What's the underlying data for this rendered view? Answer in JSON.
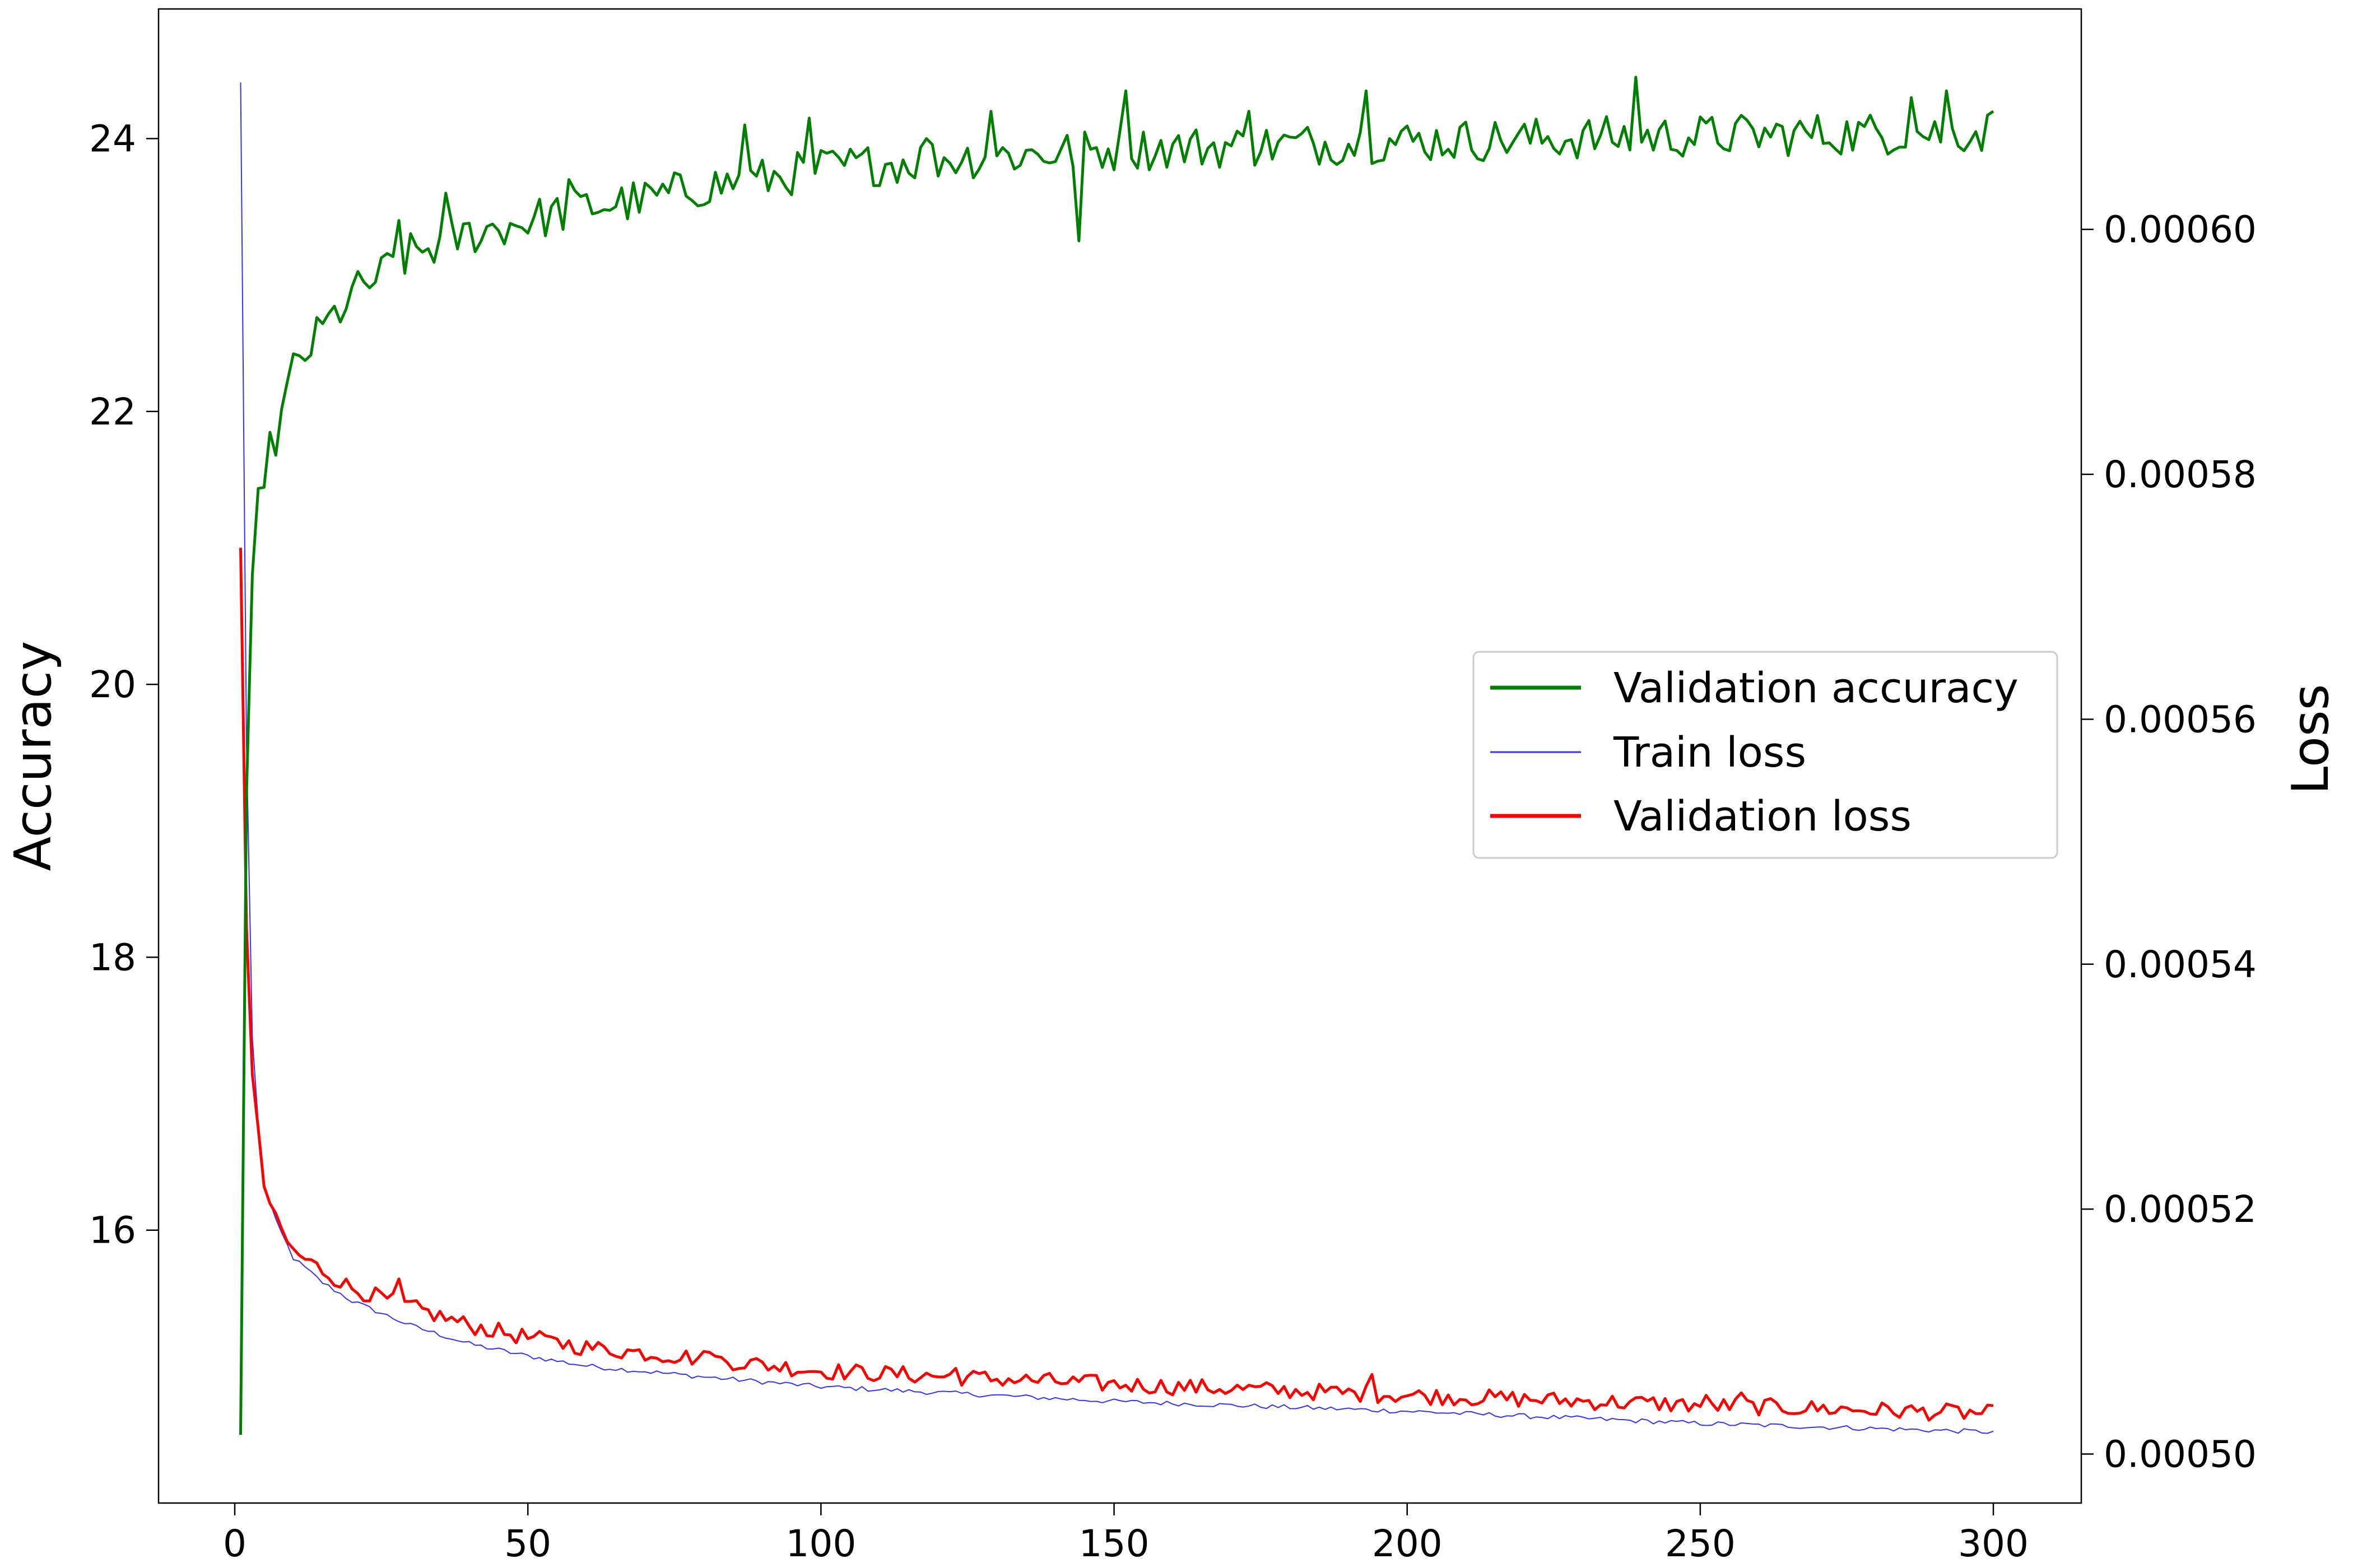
{
  "chart_data": {
    "type": "line",
    "xlabel": "",
    "x_ticks": [
      0,
      50,
      100,
      150,
      200,
      250,
      300
    ],
    "xlim": [
      -13,
      315
    ],
    "left_axis": {
      "label": "Accuracy",
      "ticks": [
        16,
        18,
        20,
        22,
        24
      ],
      "ylim": [
        14.0,
        24.95
      ]
    },
    "right_axis": {
      "label": "Loss",
      "ticks": [
        "0.00050",
        "0.00052",
        "0.00054",
        "0.00056",
        "0.00058",
        "0.00060"
      ],
      "tick_values": [
        0.0005,
        0.00052,
        0.00054,
        0.00056,
        0.00058,
        0.0006
      ],
      "ylim": [
        0.000496,
        0.000618
      ]
    },
    "legend": {
      "placement": "center-right"
    },
    "grid": false,
    "series": [
      {
        "name": "Validation accuracy",
        "axis": "left",
        "color": "#008000",
        "keypoints": [
          [
            1,
            14.5
          ],
          [
            2,
            19.2
          ],
          [
            3,
            20.8
          ],
          [
            4,
            21.3
          ],
          [
            5,
            21.6
          ],
          [
            7,
            21.8
          ],
          [
            10,
            22.3
          ],
          [
            15,
            22.6
          ],
          [
            20,
            22.85
          ],
          [
            25,
            23.0
          ],
          [
            30,
            23.15
          ],
          [
            40,
            23.3
          ],
          [
            50,
            23.4
          ],
          [
            60,
            23.5
          ],
          [
            70,
            23.55
          ],
          [
            80,
            23.65
          ],
          [
            90,
            23.7
          ],
          [
            100,
            23.78
          ],
          [
            120,
            23.85
          ],
          [
            150,
            23.92
          ],
          [
            200,
            23.98
          ],
          [
            250,
            24.02
          ],
          [
            300,
            24.05
          ]
        ],
        "noise": 0.16,
        "spikes": [
          [
            28,
            23.4
          ],
          [
            36,
            23.6
          ],
          [
            57,
            23.7
          ],
          [
            87,
            24.1
          ],
          [
            98,
            24.15
          ],
          [
            118,
            24.0
          ],
          [
            129,
            24.2
          ],
          [
            144,
            23.25
          ],
          [
            152,
            24.35
          ],
          [
            173,
            24.2
          ],
          [
            193,
            24.35
          ],
          [
            239,
            24.45
          ],
          [
            286,
            24.3
          ],
          [
            292,
            24.35
          ],
          [
            300,
            24.2
          ]
        ]
      },
      {
        "name": "Train loss",
        "axis": "right",
        "color": "#3232ff",
        "keypoints": [
          [
            1,
            0.000612
          ],
          [
            2,
            0.000558
          ],
          [
            3,
            0.000534
          ],
          [
            4,
            0.000527
          ],
          [
            5,
            0.000522
          ],
          [
            7,
            0.000519
          ],
          [
            10,
            0.000516
          ],
          [
            15,
            0.000514
          ],
          [
            20,
            0.0005125
          ],
          [
            30,
            0.0005105
          ],
          [
            40,
            0.000509
          ],
          [
            50,
            0.000508
          ],
          [
            60,
            0.0005072
          ],
          [
            80,
            0.0005063
          ],
          [
            100,
            0.0005055
          ],
          [
            150,
            0.0005043
          ],
          [
            200,
            0.0005035
          ],
          [
            250,
            0.0005025
          ],
          [
            300,
            0.0005018
          ]
        ],
        "noise": 2e-07,
        "spikes": []
      },
      {
        "name": "Validation loss",
        "axis": "right",
        "color": "#ff0000",
        "keypoints": [
          [
            1,
            0.000574
          ],
          [
            2,
            0.000543
          ],
          [
            3,
            0.000531
          ],
          [
            4,
            0.000526
          ],
          [
            5,
            0.000522
          ],
          [
            7,
            0.000519
          ],
          [
            10,
            0.0005165
          ],
          [
            15,
            0.000515
          ],
          [
            20,
            0.0005135
          ],
          [
            30,
            0.000512
          ],
          [
            40,
            0.0005105
          ],
          [
            50,
            0.0005095
          ],
          [
            60,
            0.0005087
          ],
          [
            80,
            0.0005078
          ],
          [
            100,
            0.0005068
          ],
          [
            150,
            0.0005057
          ],
          [
            200,
            0.0005048
          ],
          [
            250,
            0.000504
          ],
          [
            300,
            0.0005033
          ]
        ],
        "noise": 7e-07,
        "spikes": [
          [
            28,
            0.0005143
          ],
          [
            55,
            0.0005094
          ],
          [
            81,
            0.0005083
          ],
          [
            123,
            0.000507
          ],
          [
            194,
            0.0005065
          ],
          [
            251,
            0.0005048
          ],
          [
            257,
            0.000505
          ]
        ]
      }
    ]
  }
}
